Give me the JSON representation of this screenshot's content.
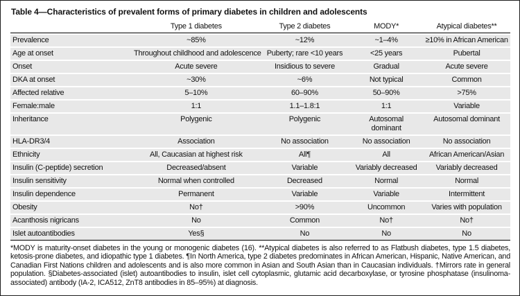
{
  "colors": {
    "row_band": "#e8e8e8",
    "border": "#1c1c1c",
    "rule": "#000000",
    "background": "#ffffff",
    "text": "#111111"
  },
  "table": {
    "title": "Table 4—Characteristics of prevalent forms of primary diabetes in children and adolescents",
    "columns": [
      "",
      "Type 1 diabetes",
      "Type 2 diabetes",
      "MODY*",
      "Atypical diabetes**"
    ],
    "rows": [
      {
        "label": "Prevalence",
        "values": [
          "~85%",
          "~12%",
          "~1–4%",
          "≥10% in African American"
        ]
      },
      {
        "label": "Age at onset",
        "values": [
          "Throughout childhood and adolescence",
          "Puberty; rare <10 years",
          "<25 years",
          "Pubertal"
        ]
      },
      {
        "label": "Onset",
        "values": [
          "Acute severe",
          "Insidious to severe",
          "Gradual",
          "Acute severe"
        ]
      },
      {
        "label": "DKA at onset",
        "values": [
          "~30%",
          "~6%",
          "Not typical",
          "Common"
        ]
      },
      {
        "label": "Affected relative",
        "values": [
          "5–10%",
          "60–90%",
          "50–90%",
          ">75%"
        ]
      },
      {
        "label": "Female:male",
        "values": [
          "1:1",
          "1.1–1.8:1",
          "1:1",
          "Variable"
        ]
      },
      {
        "label": "Inheritance",
        "values": [
          "Polygenic",
          "Polygenic",
          "Autosomal dominant",
          "Autosomal dominant"
        ]
      },
      {
        "label": "HLA-DR3/4",
        "values": [
          "Association",
          "No association",
          "No association",
          "No association"
        ]
      },
      {
        "label": "Ethnicity",
        "values": [
          "All, Caucasian at highest risk",
          "All¶",
          "All",
          "African American/Asian"
        ]
      },
      {
        "label": "Insulin (C-peptide) secretion",
        "values": [
          "Decreased/absent",
          "Variable",
          "Variably decreased",
          "Variably decreased"
        ]
      },
      {
        "label": "Insulin sensitivity",
        "values": [
          "Normal when controlled",
          "Decreased",
          "Normal",
          "Normal"
        ]
      },
      {
        "label": "Insulin dependence",
        "values": [
          "Permanent",
          "Variable",
          "Variable",
          "Intermittent"
        ]
      },
      {
        "label": "Obesity",
        "values": [
          "No†",
          ">90%",
          "Uncommon",
          "Varies with population"
        ]
      },
      {
        "label": "Acanthosis nigricans",
        "values": [
          "No",
          "Common",
          "No†",
          "No†"
        ]
      },
      {
        "label": "Islet autoantibodies",
        "values": [
          "Yes§",
          "No",
          "No",
          "No"
        ]
      }
    ],
    "footnote": "*MODY is maturity-onset diabetes in the young or monogenic diabetes (16). **Atypical diabetes is also referred to as Flatbush diabetes, type 1.5 diabetes, ketosis-prone diabetes, and idiopathic type 1 diabetes. ¶In North America, type 2 diabetes predominates in African American, Hispanic, Native American, and Canadian First Nations children and adolescents and is also more common in Asian and South Asian than in Caucasian individuals. †Mirrors rate in general population. §Diabetes-associated (islet) autoantibodies to insulin, islet cell cytoplasmic, glutamic acid decarboxylase, or tyrosine phosphatase (insulinoma-associated) antibody (IA-2, ICA512, ZnT8 antibodies in 85–95%) at diagnosis."
  }
}
